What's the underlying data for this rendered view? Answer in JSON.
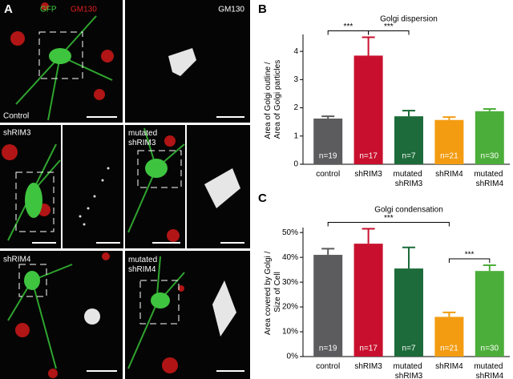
{
  "panel_labels": [
    "A",
    "B",
    "C"
  ],
  "images": {
    "channels": [
      "GFP",
      "GM130"
    ],
    "gm130_label": "GM130",
    "conditions": [
      "Control",
      "shRIM3",
      "mutated shRIM3",
      "shRIM4",
      "mutated shRIM4"
    ]
  },
  "chart_data": [
    {
      "type": "bar",
      "title": "Golgi dispersion",
      "y_label": "Area of Golgi outline / Area of Golgi particles",
      "categories": [
        "control",
        "shRIM3",
        "mutated shRIM3",
        "shRIM4",
        "mutated shRIM4"
      ],
      "values": [
        1.62,
        3.85,
        1.7,
        1.57,
        1.88
      ],
      "errors": [
        0.08,
        0.65,
        0.2,
        0.1,
        0.08
      ],
      "n_labels": [
        "n=19",
        "n=17",
        "n=7",
        "n=21",
        "n=30"
      ],
      "colors": [
        "#5c5c5e",
        "#c8102e",
        "#1d6b3a",
        "#f39c12",
        "#4cae3a"
      ],
      "ylim": [
        0,
        4.6
      ],
      "yticks": [
        0,
        1,
        2,
        3,
        4
      ],
      "significance": [
        {
          "pair": [
            0,
            1
          ],
          "label": "***"
        },
        {
          "pair": [
            1,
            2
          ],
          "label": "***"
        }
      ]
    },
    {
      "type": "bar",
      "title": "Golgi condensation",
      "y_label": "Area covered by Golgi / Size of Cell",
      "categories": [
        "control",
        "shRIM3",
        "mutated shRIM3",
        "shRIM4",
        "mutated shRIM4"
      ],
      "values": [
        41,
        45.5,
        35.5,
        16,
        34.5
      ],
      "errors": [
        2.5,
        6,
        8.5,
        1.8,
        2.3
      ],
      "n_labels": [
        "n=19",
        "n=17",
        "n=7",
        "n=21",
        "n=30"
      ],
      "colors": [
        "#5c5c5e",
        "#c8102e",
        "#1d6b3a",
        "#f39c12",
        "#4cae3a"
      ],
      "ylim": [
        0,
        52
      ],
      "yticks": [
        {
          "value": 0,
          "label": "0%"
        },
        {
          "value": 10,
          "label": "10%"
        },
        {
          "value": 20,
          "label": "20%"
        },
        {
          "value": 30,
          "label": "30%"
        },
        {
          "value": 40,
          "label": "40%"
        },
        {
          "value": 50,
          "label": "50%"
        }
      ],
      "significance": [
        {
          "pair": [
            0,
            3
          ],
          "label": "***"
        },
        {
          "pair": [
            3,
            4
          ],
          "label": "***"
        }
      ]
    }
  ]
}
